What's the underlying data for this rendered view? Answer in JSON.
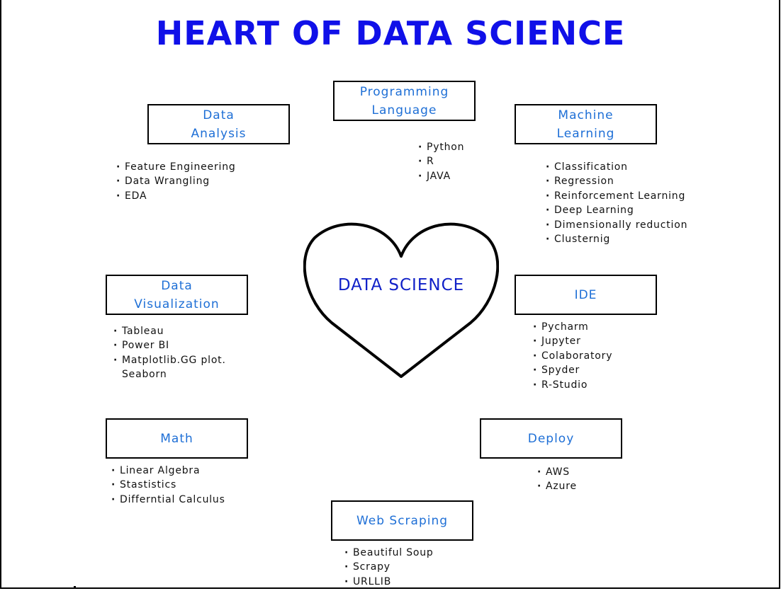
{
  "title": "HEART OF DATA SCIENCE",
  "center_label": "DATA SCIENCE",
  "colors": {
    "title": "#1010e8",
    "box_text": "#1e6fd6",
    "center_text": "#1020c8",
    "outline": "#000000"
  },
  "nodes": {
    "programming": {
      "label": "Programming\nLanguage",
      "items": [
        "Python",
        "R",
        "JAVA"
      ]
    },
    "data_analysis": {
      "label": "Data\nAnalysis",
      "items": [
        "Feature Engineering",
        "Data Wrangling",
        "EDA"
      ]
    },
    "machine_learning": {
      "label": "Machine\nLearning",
      "items": [
        "Classification",
        "Regression",
        "Reinforcement Learning",
        "Deep Learning",
        "Dimensionally reduction",
        "Clusternig"
      ]
    },
    "data_visualization": {
      "label": "Data\nVisualization",
      "items": [
        "Tableau",
        "Power BI",
        "Matplotlib.GG plot.\nSeaborn"
      ]
    },
    "ide": {
      "label": "IDE",
      "items": [
        "Pycharm",
        "Jupyter",
        "Colaboratory",
        "Spyder",
        "R-Studio"
      ]
    },
    "math": {
      "label": "Math",
      "items": [
        "Linear Algebra",
        "Stastistics",
        "Differntial Calculus"
      ]
    },
    "deploy": {
      "label": "Deploy",
      "items": [
        "AWS",
        "Azure"
      ]
    },
    "web_scraping": {
      "label": "Web Scraping",
      "items": [
        "Beautiful Soup",
        "Scrapy",
        "URLLIB"
      ]
    }
  }
}
